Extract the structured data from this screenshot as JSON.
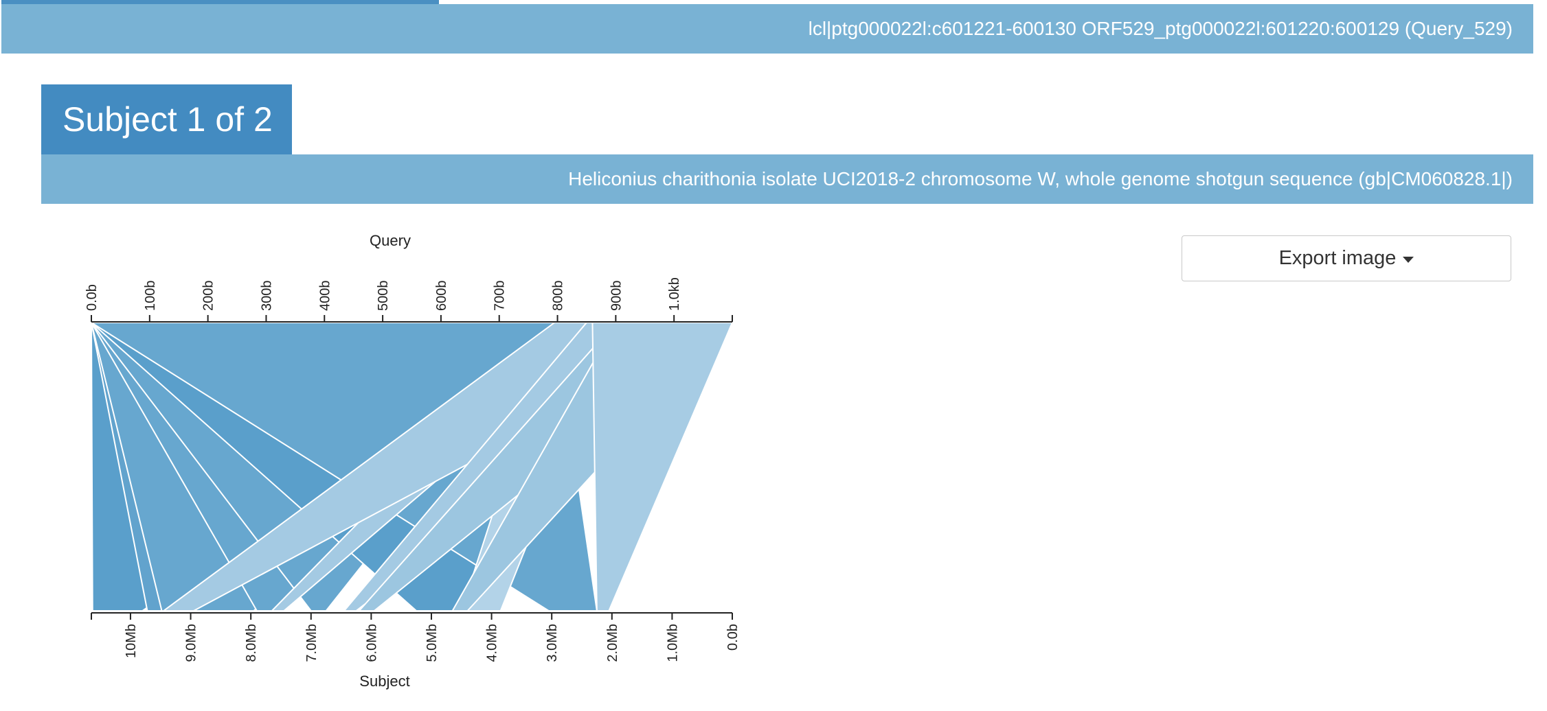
{
  "query_bar": {
    "title": "lcl|ptg000022l:c601221-600130 ORF529_ptg000022l:601220:600129 (Query_529)"
  },
  "subject": {
    "heading": "Subject 1 of 2",
    "title": "Heliconius charithonia isolate UCI2018-2 chromosome W, whole genome shotgun sequence (gb|CM060828.1|)"
  },
  "export": {
    "label": "Export image",
    "icon": "caret-down-icon"
  },
  "chart_data": {
    "type": "alignment-ribbons",
    "query_axis": {
      "label": "Query",
      "range": [
        0,
        1100
      ],
      "ticks": [
        {
          "value": 0,
          "label": "0.0b"
        },
        {
          "value": 100,
          "label": "100b"
        },
        {
          "value": 200,
          "label": "200b"
        },
        {
          "value": 300,
          "label": "300b"
        },
        {
          "value": 400,
          "label": "400b"
        },
        {
          "value": 500,
          "label": "500b"
        },
        {
          "value": 600,
          "label": "600b"
        },
        {
          "value": 700,
          "label": "700b"
        },
        {
          "value": 800,
          "label": "800b"
        },
        {
          "value": 900,
          "label": "900b"
        },
        {
          "value": 1000,
          "label": "1.0kb"
        }
      ]
    },
    "subject_axis": {
      "label": "Subject",
      "range_mb": [
        10.65,
        0
      ],
      "ticks": [
        {
          "value": 10,
          "label": "10Mb"
        },
        {
          "value": 9,
          "label": "9.0Mb"
        },
        {
          "value": 8,
          "label": "8.0Mb"
        },
        {
          "value": 7,
          "label": "7.0Mb"
        },
        {
          "value": 6,
          "label": "6.0Mb"
        },
        {
          "value": 5,
          "label": "5.0Mb"
        },
        {
          "value": 4,
          "label": "4.0Mb"
        },
        {
          "value": 3,
          "label": "3.0Mb"
        },
        {
          "value": 2,
          "label": "2.0Mb"
        },
        {
          "value": 1,
          "label": "1.0Mb"
        },
        {
          "value": 0,
          "label": "0.0b"
        }
      ]
    },
    "alignments": [
      {
        "q": [
          0,
          795
        ],
        "s_mb": [
          10.63,
          9.8
        ],
        "color": "#5a9fcb"
      },
      {
        "q": [
          0,
          795
        ],
        "s_mb": [
          9.72,
          9.5
        ],
        "color": "#62a3cd"
      },
      {
        "q": [
          0,
          795
        ],
        "s_mb": [
          9.48,
          7.95
        ],
        "color": "#67a7cf"
      },
      {
        "q": [
          0,
          795
        ],
        "s_mb": [
          7.9,
          7.6
        ],
        "color": "#67a7cf"
      },
      {
        "q": [
          0,
          795
        ],
        "s_mb": [
          7.0,
          6.75
        ],
        "color": "#67a7cf"
      },
      {
        "q": [
          0,
          795
        ],
        "s_mb": [
          5.25,
          4.0
        ],
        "color": "#5a9fcb"
      },
      {
        "q": [
          0,
          795
        ],
        "s_mb": [
          3.05,
          2.25
        ],
        "color": "#67a7cf"
      },
      {
        "q": [
          795,
          900
        ],
        "s_mb": [
          4.5,
          3.85
        ],
        "color": "#b3d3e8"
      },
      {
        "q": [
          795,
          910
        ],
        "s_mb": [
          7.65,
          7.45
        ],
        "color": "#a4cae3"
      },
      {
        "q": [
          795,
          1100
        ],
        "s_mb": [
          9.45,
          8.95
        ],
        "color": "#a4cae3"
      },
      {
        "q": [
          850,
          1100
        ],
        "s_mb": [
          6.45,
          6.25
        ],
        "color": "#a4cae3"
      },
      {
        "q": [
          900,
          1100
        ],
        "s_mb": [
          6.2,
          5.95
        ],
        "color": "#9cc6e0"
      },
      {
        "q": [
          900,
          1100
        ],
        "s_mb": [
          4.65,
          4.4
        ],
        "color": "#9cc6e0"
      },
      {
        "q": [
          860,
          1100
        ],
        "s_mb": [
          2.25,
          2.05
        ],
        "color": "#a7cce4"
      }
    ]
  }
}
